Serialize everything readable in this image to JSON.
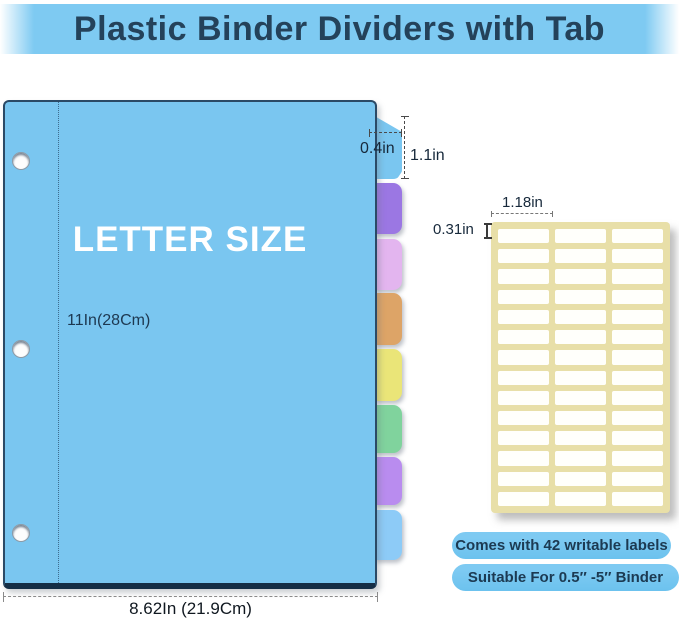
{
  "title": "Plastic Binder Dividers with Tab",
  "divider": {
    "size_label": "LETTER SIZE",
    "height_dimension": "11In(28Cm)",
    "width_dimension": "8.62In (21.9Cm)",
    "tab_width_dimension": "0.4in",
    "tab_height_dimension": "1.1in",
    "hole_count": 3,
    "tab_colors": [
      "#7ac6f0",
      "#9b77e3",
      "#e3b5ef",
      "#dda467",
      "#eae578",
      "#80d39d",
      "#b98cef",
      "#8dcbf7"
    ]
  },
  "label_sheet": {
    "columns": 3,
    "rows": 14,
    "total_labels": 42,
    "label_width_dimension": "1.18in",
    "label_height_dimension": "0.31in",
    "sheet_color": "#e8dfa8"
  },
  "badges": [
    "Comes with 42 writable labels",
    "Suitable For 0.5″ -5″  Binder"
  ],
  "colors": {
    "banner_blue": "#7ecaf2",
    "text_navy": "#24425a",
    "sheet_blue": "#7ac6f0"
  }
}
